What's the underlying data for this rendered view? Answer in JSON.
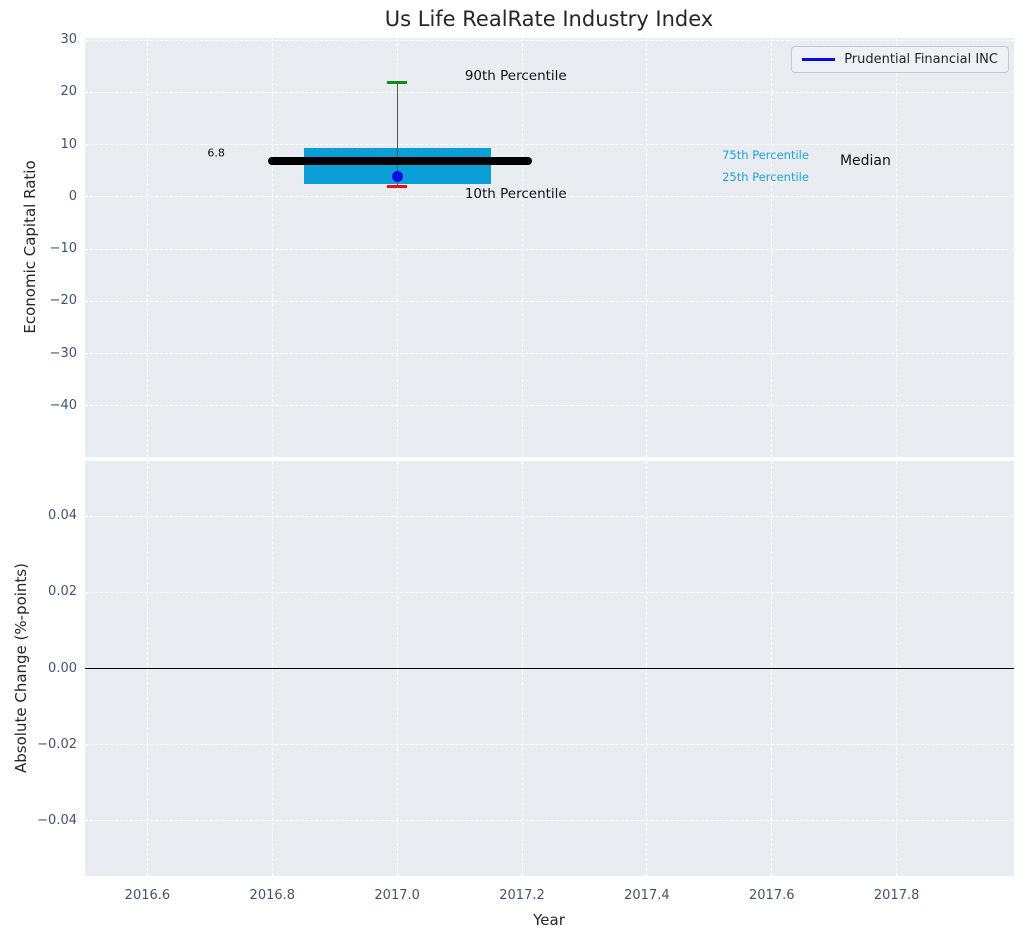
{
  "title": "Us Life RealRate Industry Index",
  "legend": {
    "label": "Prudential Financial INC",
    "line_color": "#0a0ae6"
  },
  "colors": {
    "figure_background": "#ffffff",
    "axes_background": "#e9edf1",
    "grid": "#ffffff",
    "title_text": "#262626",
    "axis_label_text": "#262626",
    "tick_label_text": "#44546a",
    "box_fill": "#0aa0d7",
    "median_line": "#000000",
    "whisker": "#555555",
    "p90_cap": "#0f8f0f",
    "p10_cap": "#e61010",
    "company_dot": "#0a0ae6",
    "zero_line": "#000000",
    "annotation_text": "#111111",
    "percentile_annotation_text": "#1ba3d7",
    "legend_border": "#c9c9c9",
    "legend_background": "#edf0f4"
  },
  "chart_data": [
    {
      "type": "box",
      "panel": "top",
      "title": "Us Life RealRate Industry Index",
      "ylabel": "Economic Capital Ratio",
      "xlim": [
        2016.5,
        2017.988
      ],
      "ylim": [
        -49.8,
        30.4
      ],
      "yticks": [
        30,
        20,
        10,
        0,
        -10,
        -20,
        -30,
        -40
      ],
      "ytick_labels": [
        "30",
        "20",
        "10",
        "0",
        "−10",
        "−20",
        "−30",
        "−40"
      ],
      "xticks": [
        2016.6,
        2016.8,
        2017.0,
        2017.2,
        2017.4,
        2017.6,
        2017.8
      ],
      "xtick_labels": [
        "2016.6",
        "2016.8",
        "2017.0",
        "2017.2",
        "2017.4",
        "2017.6",
        "2017.8"
      ],
      "grid": true,
      "legend_position": "upper right",
      "box": {
        "x_center": 2017.0,
        "box_x_range": [
          2016.85,
          2017.15
        ],
        "median_x_range": [
          2016.8,
          2017.21
        ],
        "cap_half_width": 0.016,
        "p10": 1.9,
        "p25": 2.5,
        "median": 6.8,
        "p75": 9.4,
        "p90": 21.8
      },
      "company_point": {
        "name": "Prudential Financial INC",
        "x": 2017.0,
        "y": 3.9
      },
      "annotations": [
        {
          "id": "p90-label",
          "text": "90th Percentile",
          "x": 2017.19,
          "y": 23.1,
          "color": "#111111",
          "size": 13.5
        },
        {
          "id": "p10-label",
          "text": "10th Percentile",
          "x": 2017.19,
          "y": 0.55,
          "color": "#111111",
          "size": 13.5
        },
        {
          "id": "p75-label",
          "text": "75th Percentile",
          "x": 2017.59,
          "y": 8.0,
          "color": "#1ba3d7",
          "size": 11.5
        },
        {
          "id": "p25-label",
          "text": "25th Percentile",
          "x": 2017.59,
          "y": 3.8,
          "color": "#1ba3d7",
          "size": 11.5
        },
        {
          "id": "median-label",
          "text": "Median",
          "x": 2017.75,
          "y": 6.9,
          "color": "#111111",
          "size": 14
        },
        {
          "id": "median-value",
          "text": "6.8",
          "x": 2016.71,
          "y": 8.4,
          "color": "#111111",
          "size": 11
        }
      ]
    },
    {
      "type": "line",
      "panel": "bottom",
      "ylabel": "Absolute Change (%-points)",
      "xlabel": "Year",
      "xlim": [
        2016.5,
        2017.988
      ],
      "ylim": [
        -0.0545,
        0.0545
      ],
      "yticks": [
        0.04,
        0.02,
        0.0,
        -0.02,
        -0.04
      ],
      "ytick_labels": [
        "0.04",
        "0.02",
        "0.00",
        "−0.02",
        "−0.04"
      ],
      "xticks": [
        2016.6,
        2016.8,
        2017.0,
        2017.2,
        2017.4,
        2017.6,
        2017.8
      ],
      "xtick_labels": [
        "2016.6",
        "2016.8",
        "2017.0",
        "2017.2",
        "2017.4",
        "2017.6",
        "2017.8"
      ],
      "grid": true,
      "zero_line": 0.0,
      "series": []
    }
  ]
}
